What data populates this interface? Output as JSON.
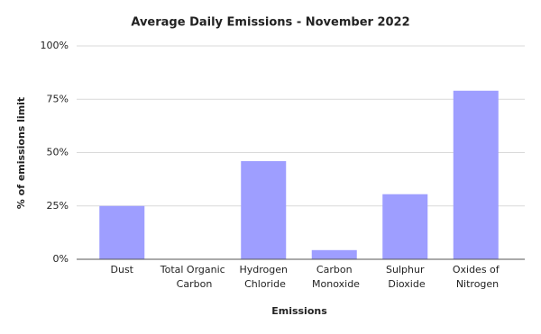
{
  "chart_data": {
    "type": "bar",
    "title": "Average Daily Emissions - November 2022",
    "x_label": "Emissions",
    "y_label": "% of emissions limit",
    "categories": [
      "Dust",
      "Total Organic Carbon",
      "Hydrogen Chloride",
      "Carbon Monoxide",
      "Sulphur Dioxide",
      "Oxides of Nitrogen"
    ],
    "values": [
      25,
      0,
      46,
      4.3,
      30.5,
      79
    ],
    "color": "#9e9eff",
    "ylim": [
      0,
      100
    ],
    "yticks": [
      {
        "value": 0,
        "label": "0%"
      },
      {
        "value": 25,
        "label": "25%"
      },
      {
        "value": 50,
        "label": "50%"
      },
      {
        "value": 75,
        "label": "75%"
      },
      {
        "value": 100,
        "label": "100%"
      }
    ],
    "grid": true
  }
}
